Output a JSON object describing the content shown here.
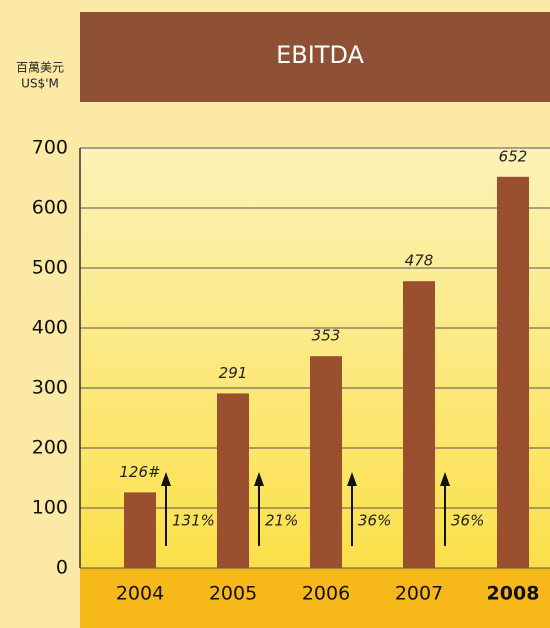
{
  "chart_data": {
    "type": "bar",
    "title": "EBITDA",
    "y_label_lines": [
      "百萬美元",
      "US$'M"
    ],
    "categories": [
      "2004",
      "2005",
      "2006",
      "2007",
      "2008"
    ],
    "values": [
      126,
      291,
      353,
      478,
      652
    ],
    "value_labels": [
      "126#",
      "291",
      "353",
      "478",
      "652"
    ],
    "growth_labels": [
      "131%",
      "21%",
      "36%",
      "36%"
    ],
    "bold_category": 4,
    "color": "#9a4f2e",
    "ylim": [
      0,
      700
    ],
    "yticks": [
      0,
      100,
      200,
      300,
      400,
      500,
      600,
      700
    ],
    "grid": true
  }
}
